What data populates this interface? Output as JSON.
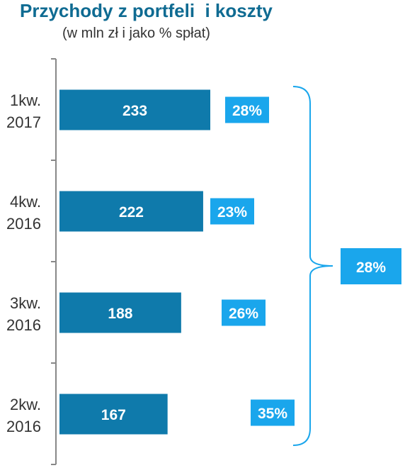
{
  "chart_data": {
    "type": "bar",
    "orientation": "horizontal",
    "title": "Przychody z portfeli  i koszty",
    "subtitle": "(w mln zł i jako % spłat)",
    "categories": [
      [
        "1kw.",
        "2017"
      ],
      [
        "4kw.",
        "2016"
      ],
      [
        "3kw.",
        "2016"
      ],
      [
        "2kw.",
        "2016"
      ]
    ],
    "values": [
      233,
      222,
      188,
      167
    ],
    "percent_labels": [
      "28%",
      "23%",
      "26%",
      "35%"
    ],
    "bracket_total_label": "28%",
    "xlim": [
      0,
      233
    ],
    "grid": false,
    "legend": "none"
  },
  "colors": {
    "title": "#0f6b92",
    "bar": "#0f7aab",
    "pct_box": "#1aa6ec",
    "bracket": "#1aa6ec",
    "axis": "#888888"
  }
}
